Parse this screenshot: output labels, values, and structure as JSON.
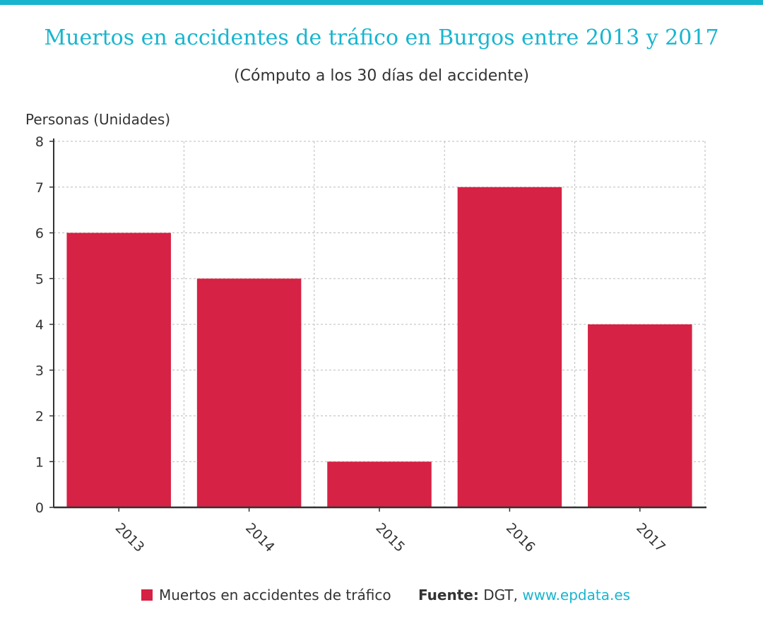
{
  "colors": {
    "accent": "#18b5cf",
    "bar": "#d62244",
    "text": "#333333",
    "grid": "#bbbbbb"
  },
  "header": {
    "title": "Muertos en accidentes de tráfico en Burgos entre 2013 y 2017",
    "subtitle": "(Cómputo a los 30 días del accidente)"
  },
  "chart_data": {
    "type": "bar",
    "title": "Muertos en accidentes de tráfico en Burgos entre 2013 y 2017",
    "subtitle": "(Cómputo a los 30 días del accidente)",
    "xlabel": "",
    "ylabel": "Personas (Unidades)",
    "categories": [
      "2013",
      "2014",
      "2015",
      "2016",
      "2017"
    ],
    "series": [
      {
        "name": "Muertos en accidentes de tráfico",
        "values": [
          6,
          5,
          1,
          7,
          4
        ]
      }
    ],
    "ylim": [
      0,
      8
    ],
    "yticks": [
      "0",
      "1",
      "2",
      "3",
      "4",
      "5",
      "6",
      "7",
      "8"
    ],
    "grid": true,
    "legend_position": "bottom"
  },
  "footer": {
    "legend_label": "Muertos en accidentes de tráfico",
    "source_label": "Fuente:",
    "source_text": " DGT, ",
    "source_link": "www.epdata.es"
  }
}
